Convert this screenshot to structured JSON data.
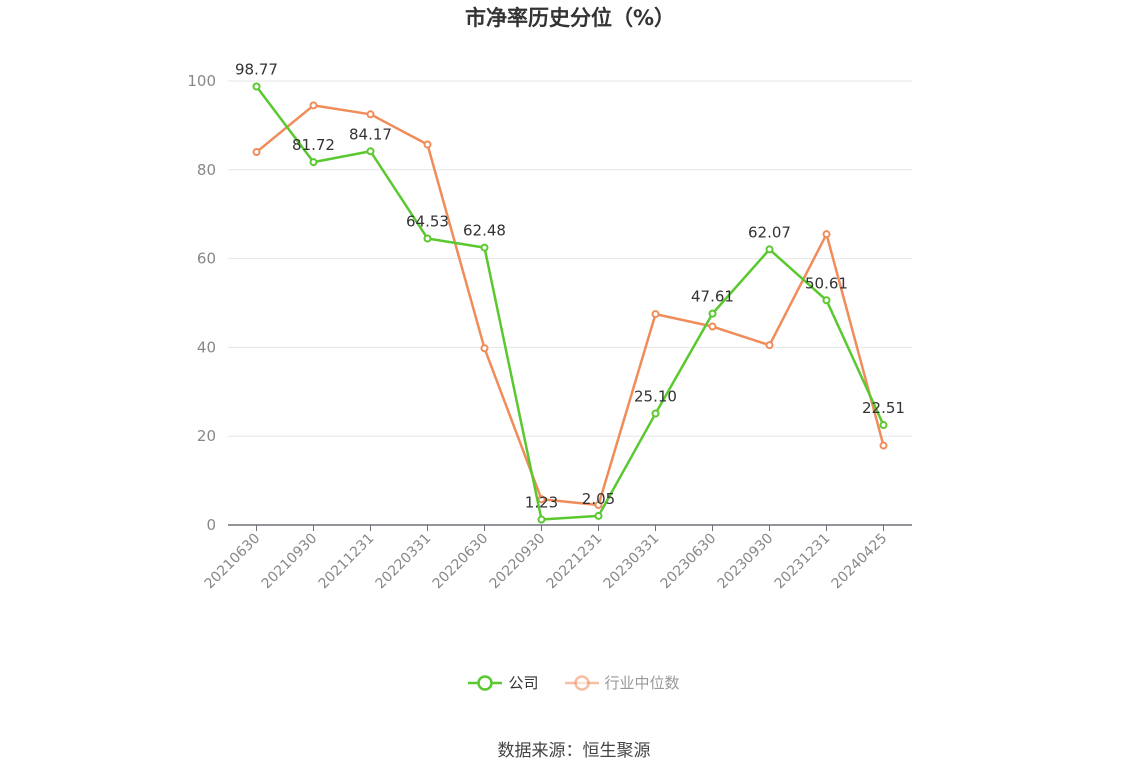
{
  "source_text": "数据来源：恒生聚源",
  "chart_data": {
    "type": "line",
    "title": "市净率历史分位（%）",
    "categories": [
      "20210630",
      "20210930",
      "20211231",
      "20220331",
      "20220630",
      "20220930",
      "20221231",
      "20230331",
      "20230630",
      "20230930",
      "20231231",
      "20240425"
    ],
    "series": [
      {
        "name": "公司",
        "color": "#5ac82f",
        "values": [
          98.77,
          81.72,
          84.17,
          64.53,
          62.48,
          1.23,
          2.05,
          25.1,
          47.61,
          62.07,
          50.61,
          22.51
        ],
        "labels": [
          "98.77",
          "81.72",
          "84.17",
          "64.53",
          "62.48",
          "1.23",
          "2.05",
          "25.10",
          "47.61",
          "62.07",
          "50.61",
          "22.51"
        ]
      },
      {
        "name": "行业中位数",
        "color": "#f08c5a",
        "values": [
          84.0,
          94.5,
          92.5,
          85.7,
          39.8,
          5.8,
          4.5,
          47.5,
          44.7,
          40.5,
          65.5,
          17.9
        ]
      }
    ],
    "yticks": [
      "0",
      "20",
      "40",
      "60",
      "80",
      "100"
    ],
    "ylim": [
      0,
      100
    ],
    "grid": true,
    "legend_position": "bottom-center"
  }
}
